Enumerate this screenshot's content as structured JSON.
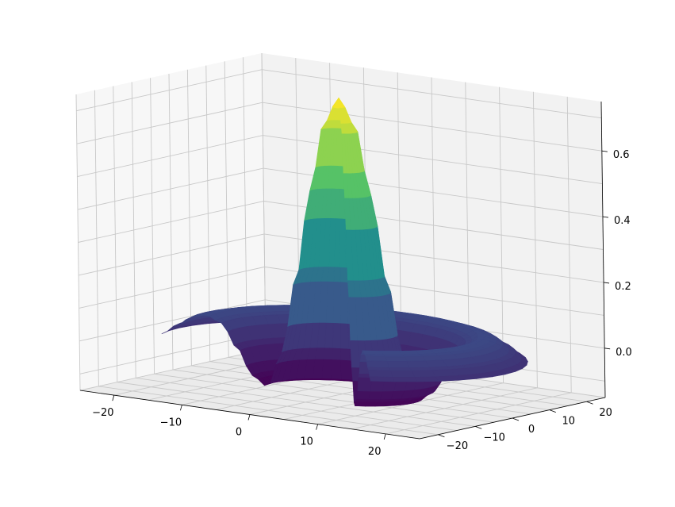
{
  "chart_data": {
    "type": "surface",
    "title": "",
    "xlabel": "",
    "ylabel": "",
    "zlabel": "",
    "xlim": [
      -25,
      25
    ],
    "ylim": [
      -25,
      25
    ],
    "zlim": [
      -0.15,
      0.75
    ],
    "grid": true,
    "colormap": "viridis",
    "colormap_stops": [
      "#440154",
      "#3b528b",
      "#21918c",
      "#5ec962",
      "#fde725"
    ],
    "x_ticks": [
      {
        "value": -20,
        "label": "−20"
      },
      {
        "value": -10,
        "label": "−10"
      },
      {
        "value": 0,
        "label": "0"
      },
      {
        "value": 10,
        "label": "10"
      },
      {
        "value": 20,
        "label": "20"
      }
    ],
    "y_ticks": [
      {
        "value": -20,
        "label": "−20"
      },
      {
        "value": -10,
        "label": "−10"
      },
      {
        "value": 0,
        "label": "0"
      },
      {
        "value": 10,
        "label": "10"
      },
      {
        "value": 20,
        "label": "20"
      }
    ],
    "z_ticks": [
      {
        "value": 0.0,
        "label": "0.0"
      },
      {
        "value": 0.2,
        "label": "0.2"
      },
      {
        "value": 0.4,
        "label": "0.4"
      },
      {
        "value": 0.6,
        "label": "0.6"
      }
    ],
    "surface": {
      "function": "cylindrical radial ripple",
      "r_range": [
        12,
        24
      ],
      "profile_r": [
        0,
        2,
        4,
        6,
        8,
        10,
        12,
        14,
        16,
        18,
        20,
        22,
        24
      ],
      "profile_z": [
        0.75,
        0.67,
        0.46,
        0.19,
        -0.04,
        -0.15,
        -0.12,
        -0.04,
        0.03,
        0.05,
        0.04,
        0.01,
        -0.02
      ],
      "peak_z": 0.75
    }
  }
}
